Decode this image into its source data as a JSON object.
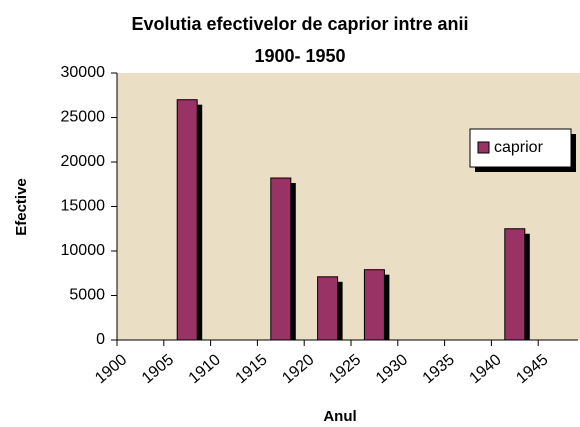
{
  "chart_data": {
    "type": "bar",
    "title": [
      "Evolutia efectivelor de caprior intre anii",
      "1900- 1950"
    ],
    "x_label": "Anul",
    "y_label": "Efective",
    "categories": [
      "1900",
      "1905",
      "1910",
      "1915",
      "1920",
      "1925",
      "1930",
      "1935",
      "1940",
      "1945"
    ],
    "series": [
      {
        "name": "caprior",
        "color": "#993366",
        "values": [
          null,
          27000,
          null,
          18200,
          7100,
          7900,
          null,
          null,
          12500,
          null
        ]
      }
    ],
    "ylim": [
      0,
      30000
    ],
    "yticks": [
      0,
      5000,
      10000,
      15000,
      20000,
      25000,
      30000
    ],
    "grid": false,
    "legend": "upper right"
  }
}
